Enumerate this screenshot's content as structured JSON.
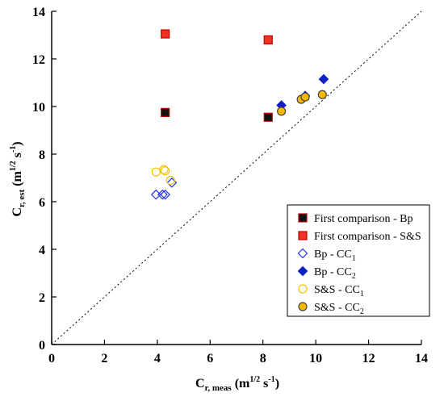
{
  "chart_data": {
    "type": "scatter",
    "xlim": [
      0,
      14
    ],
    "ylim": [
      0,
      14
    ],
    "x_ticks": [
      "0",
      "2",
      "4",
      "6",
      "8",
      "10",
      "12",
      "14"
    ],
    "y_ticks": [
      "0",
      "2",
      "4",
      "6",
      "8",
      "10",
      "12",
      "14"
    ],
    "xlabel": {
      "main": "C",
      "sub": "r, meas",
      "unit_open": " (m",
      "unit_sup1": "1/2",
      "unit_mid": " s",
      "unit_sup2": "-1",
      "unit_close": ")"
    },
    "ylabel": {
      "main": "C",
      "sub": "r, est",
      "unit_open": " (m",
      "unit_sup1": "1/2",
      "unit_mid": " s",
      "unit_sup2": "-1",
      "unit_close": ")"
    },
    "grid": false,
    "legend_position": "lower-right",
    "reference_line": {
      "style": "dotted",
      "from": [
        0,
        0
      ],
      "to": [
        14,
        14
      ]
    },
    "series": [
      {
        "name": "First comparison - Bp",
        "marker": "square",
        "fill": "#111111",
        "stroke": "#c00000",
        "points": [
          [
            4.3,
            9.75
          ],
          [
            8.2,
            9.55
          ]
        ]
      },
      {
        "name": "First comparison - S&S",
        "marker": "square",
        "fill": "#ee3322",
        "stroke": "#c00000",
        "points": [
          [
            4.3,
            13.05
          ],
          [
            8.2,
            12.8
          ]
        ]
      },
      {
        "name": "Bp - CC",
        "sub": "1",
        "marker": "diamond-open",
        "fill": "none",
        "stroke": "#2233ee",
        "points": [
          [
            3.95,
            6.3
          ],
          [
            4.2,
            6.3
          ],
          [
            4.3,
            6.3
          ],
          [
            4.55,
            6.8
          ]
        ]
      },
      {
        "name": "Bp - CC",
        "sub": "2",
        "marker": "diamond",
        "fill": "#1020c8",
        "stroke": "#1020c8",
        "points": [
          [
            8.7,
            10.05
          ],
          [
            9.6,
            10.45
          ],
          [
            10.3,
            11.15
          ]
        ]
      },
      {
        "name": "S&S - CC",
        "sub": "1",
        "marker": "circle-open",
        "fill": "none",
        "stroke": "#f2c200",
        "points": [
          [
            3.95,
            7.25
          ],
          [
            4.25,
            7.35
          ],
          [
            4.3,
            7.3
          ],
          [
            4.5,
            6.9
          ]
        ]
      },
      {
        "name": "S&S - CC",
        "sub": "2",
        "marker": "circle",
        "fill": "#f5b800",
        "stroke": "#444444",
        "points": [
          [
            8.7,
            9.8
          ],
          [
            9.45,
            10.3
          ],
          [
            9.6,
            10.4
          ],
          [
            10.25,
            10.5
          ]
        ]
      }
    ]
  }
}
